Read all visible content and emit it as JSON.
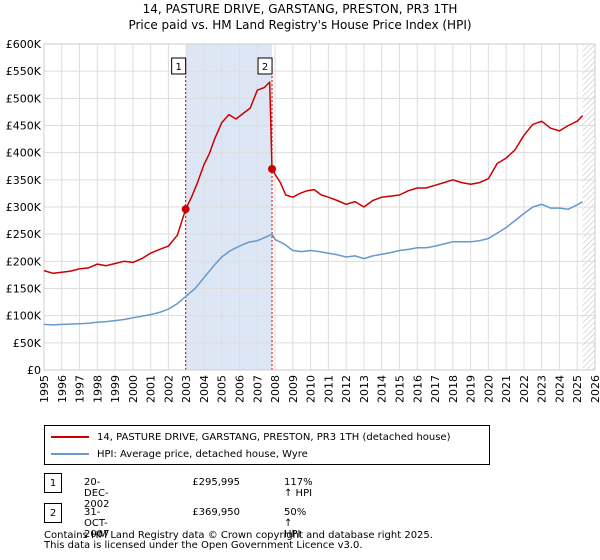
{
  "chart_data": {
    "type": "line",
    "title": "14, PASTURE DRIVE, GARSTANG, PRESTON, PR3 1TH",
    "subtitle": "Price paid vs. HM Land Registry's House Price Index (HPI)",
    "xlim": [
      1995,
      2026
    ],
    "ylim": [
      0,
      600000
    ],
    "x_ticks": [
      1995,
      1996,
      1997,
      1998,
      1999,
      2000,
      2001,
      2002,
      2003,
      2004,
      2005,
      2006,
      2007,
      2008,
      2009,
      2010,
      2011,
      2012,
      2013,
      2014,
      2015,
      2016,
      2017,
      2018,
      2019,
      2020,
      2021,
      2022,
      2023,
      2024,
      2025,
      2026
    ],
    "y_ticks": [
      {
        "value": 0,
        "label": "£0"
      },
      {
        "value": 50000,
        "label": "£50K"
      },
      {
        "value": 100000,
        "label": "£100K"
      },
      {
        "value": 150000,
        "label": "£150K"
      },
      {
        "value": 200000,
        "label": "£200K"
      },
      {
        "value": 250000,
        "label": "£250K"
      },
      {
        "value": 300000,
        "label": "£300K"
      },
      {
        "value": 350000,
        "label": "£350K"
      },
      {
        "value": 400000,
        "label": "£400K"
      },
      {
        "value": 450000,
        "label": "£450K"
      },
      {
        "value": 500000,
        "label": "£500K"
      },
      {
        "value": 550000,
        "label": "£550K"
      },
      {
        "value": 600000,
        "label": "£600K"
      }
    ],
    "grid": true,
    "colors": {
      "property": "#cc0000",
      "hpi": "#6699cc",
      "shade": "#dde6f5",
      "vline": "#cc0000",
      "future_hatch": "#bbbbbb"
    },
    "shaded_region": [
      2002.97,
      2007.83
    ],
    "future_from": 2025.3,
    "series": [
      {
        "name": "14, PASTURE DRIVE, GARSTANG, PRESTON, PR3 1TH (detached house)",
        "color": "#cc0000",
        "x": [
          1995.0,
          1995.5,
          1996.0,
          1996.5,
          1997.0,
          1997.5,
          1998.0,
          1998.5,
          1999.0,
          1999.5,
          2000.0,
          2000.5,
          2001.0,
          2001.5,
          2002.0,
          2002.5,
          2002.97,
          2003.3,
          2003.6,
          2004.0,
          2004.3,
          2004.6,
          2005.0,
          2005.4,
          2005.8,
          2006.2,
          2006.6,
          2007.0,
          2007.4,
          2007.7,
          2007.83,
          2008.0,
          2008.3,
          2008.6,
          2009.0,
          2009.4,
          2009.8,
          2010.2,
          2010.6,
          2011.0,
          2011.5,
          2012.0,
          2012.5,
          2013.0,
          2013.5,
          2014.0,
          2014.5,
          2015.0,
          2015.5,
          2016.0,
          2016.5,
          2017.0,
          2017.5,
          2018.0,
          2018.5,
          2019.0,
          2019.5,
          2020.0,
          2020.5,
          2021.0,
          2021.5,
          2022.0,
          2022.5,
          2023.0,
          2023.5,
          2024.0,
          2024.5,
          2025.0,
          2025.3
        ],
        "values": [
          183000,
          178000,
          180000,
          182000,
          186000,
          188000,
          195000,
          192000,
          196000,
          200000,
          198000,
          205000,
          215000,
          222000,
          228000,
          248000,
          295995,
          318000,
          342000,
          378000,
          398000,
          425000,
          455000,
          470000,
          462000,
          472000,
          482000,
          515000,
          520000,
          530000,
          369950,
          360000,
          345000,
          322000,
          318000,
          325000,
          330000,
          332000,
          322000,
          318000,
          312000,
          305000,
          310000,
          300000,
          312000,
          318000,
          320000,
          322000,
          330000,
          335000,
          335000,
          340000,
          345000,
          350000,
          345000,
          342000,
          345000,
          352000,
          380000,
          390000,
          405000,
          432000,
          452000,
          458000,
          445000,
          440000,
          450000,
          458000,
          468000
        ]
      },
      {
        "name": "HPI: Average price, detached house, Wyre",
        "color": "#6699cc",
        "x": [
          1995.0,
          1995.5,
          1996.0,
          1996.5,
          1997.0,
          1997.5,
          1998.0,
          1998.5,
          1999.0,
          1999.5,
          2000.0,
          2000.5,
          2001.0,
          2001.5,
          2002.0,
          2002.5,
          2003.0,
          2003.5,
          2004.0,
          2004.5,
          2005.0,
          2005.5,
          2006.0,
          2006.5,
          2007.0,
          2007.5,
          2007.83,
          2008.0,
          2008.5,
          2009.0,
          2009.5,
          2010.0,
          2010.5,
          2011.0,
          2011.5,
          2012.0,
          2012.5,
          2013.0,
          2013.5,
          2014.0,
          2014.5,
          2015.0,
          2015.5,
          2016.0,
          2016.5,
          2017.0,
          2017.5,
          2018.0,
          2018.5,
          2019.0,
          2019.5,
          2020.0,
          2020.5,
          2021.0,
          2021.5,
          2022.0,
          2022.5,
          2023.0,
          2023.5,
          2024.0,
          2024.5,
          2025.0,
          2025.3
        ],
        "values": [
          84000,
          83000,
          84000,
          84500,
          85000,
          86000,
          88000,
          89000,
          91000,
          93000,
          96000,
          99000,
          102000,
          106000,
          112000,
          122000,
          136000,
          150000,
          170000,
          190000,
          208000,
          220000,
          228000,
          235000,
          238000,
          245000,
          250000,
          240000,
          232000,
          220000,
          218000,
          220000,
          218000,
          215000,
          212000,
          208000,
          210000,
          205000,
          210000,
          213000,
          216000,
          220000,
          222000,
          225000,
          225000,
          228000,
          232000,
          236000,
          236000,
          236000,
          238000,
          242000,
          252000,
          262000,
          275000,
          288000,
          300000,
          305000,
          298000,
          298000,
          296000,
          304000,
          310000
        ]
      }
    ],
    "markers": [
      {
        "label": "1",
        "x": 2002.97,
        "y": 295995
      },
      {
        "label": "2",
        "x": 2007.83,
        "y": 369950
      }
    ]
  },
  "legend": {
    "property_label": "14, PASTURE DRIVE, GARSTANG, PRESTON, PR3 1TH (detached house)",
    "hpi_label": "HPI: Average price, detached house, Wyre"
  },
  "transactions": [
    {
      "num": "1",
      "date": "20-DEC-2002",
      "price": "£295,995",
      "hpi": "117% ↑ HPI"
    },
    {
      "num": "2",
      "date": "31-OCT-2007",
      "price": "£369,950",
      "hpi": "50% ↑ HPI"
    }
  ],
  "footer": {
    "line1": "Contains HM Land Registry data © Crown copyright and database right 2025.",
    "line2": "This data is licensed under the Open Government Licence v3.0."
  }
}
